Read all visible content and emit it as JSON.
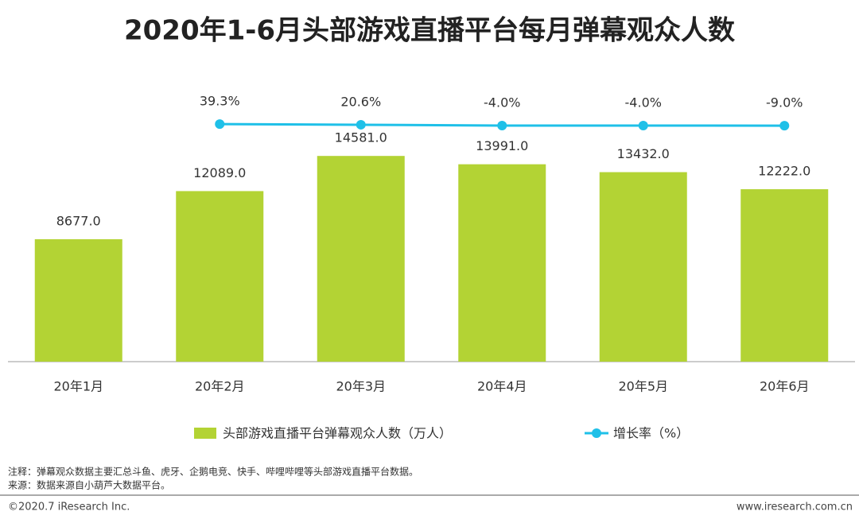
{
  "chart_data": {
    "type": "bar_line",
    "title": "2020年1-6月头部游戏直播平台每月弹幕观众人数",
    "categories": [
      "20年1月",
      "20年2月",
      "20年3月",
      "20年4月",
      "20年5月",
      "20年6月"
    ],
    "series": [
      {
        "name": "头部游戏直播平台弹幕观众人数（万人）",
        "type": "bar",
        "color": "#b3d334",
        "values": [
          8677,
          12089,
          14581,
          13991,
          13432,
          12222
        ],
        "value_labels": [
          "8677.0",
          "12089.0",
          "14581.0",
          "13991.0",
          "13432.0",
          "12222.0"
        ]
      },
      {
        "name": "增长率（%）",
        "type": "line",
        "color": "#1fc0e8",
        "axis": "y2",
        "values": [
          null,
          39.3,
          20.6,
          -4.0,
          -4.0,
          -9.0
        ],
        "value_labels": [
          null,
          "39.3%",
          "20.6%",
          "-4.0%",
          "-4.0%",
          "-9.0%"
        ]
      }
    ],
    "ylim": [
      0,
      20000
    ],
    "y2lim": [
      -7200,
      1400
    ],
    "notes": [
      "注释：弹幕观众数据主要汇总斗鱼、虎牙、企鹅电竞、快手、哔哩哔哩等头部游戏直播平台数据。",
      "来源：数据来源自小葫芦大数据平台。"
    ],
    "copyright": "©2020.7 iResearch Inc.",
    "website": "www.iresearch.com.cn"
  }
}
